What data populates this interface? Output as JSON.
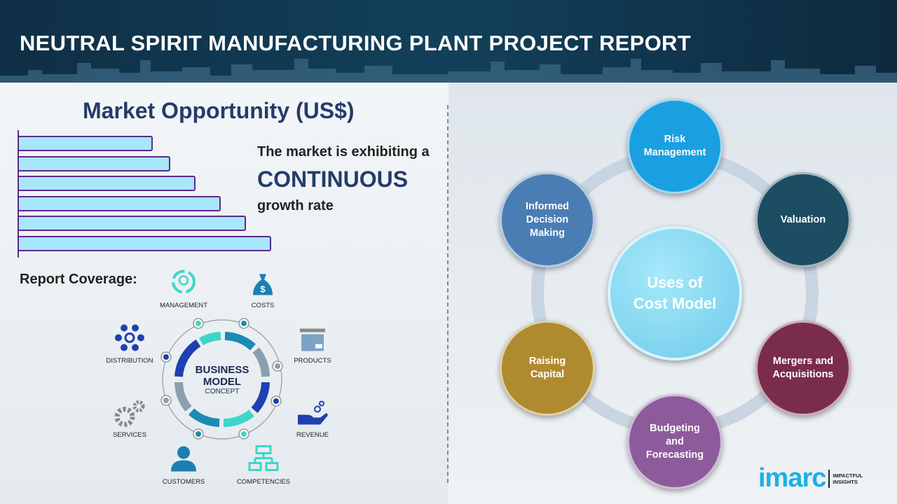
{
  "header": {
    "title": "NEUTRAL SPIRIT MANUFACTURING PLANT PROJECT REPORT"
  },
  "market": {
    "title": "Market Opportunity (US$)",
    "line1": "The market is exhibiting a",
    "line2": "CONTINUOUS",
    "line3": "growth rate",
    "bars_relative": [
      0.53,
      0.6,
      0.7,
      0.8,
      0.9,
      1.0
    ],
    "bar_fill": "#a8e6fb",
    "bar_border": "#5b2a8c"
  },
  "coverage": {
    "title": "Report Coverage:",
    "center_line1": "BUSINESS",
    "center_line2": "MODEL",
    "center_line3": "CONCEPT",
    "items": [
      {
        "label": "MANAGEMENT",
        "icon": "lightbulb-cycle-icon"
      },
      {
        "label": "COSTS",
        "icon": "money-bag-icon"
      },
      {
        "label": "DISTRIBUTION",
        "icon": "network-icon"
      },
      {
        "label": "PRODUCTS",
        "icon": "box-icon"
      },
      {
        "label": "SERVICES",
        "icon": "gears-icon"
      },
      {
        "label": "REVENUE",
        "icon": "hand-coins-icon"
      },
      {
        "label": "CUSTOMERS",
        "icon": "user-icon"
      },
      {
        "label": "COMPETENCIES",
        "icon": "org-chart-icon"
      }
    ]
  },
  "cost_model": {
    "center": [
      "Uses of",
      "Cost Model"
    ],
    "items": [
      {
        "label": "Risk Management",
        "color": "#1a9fe0"
      },
      {
        "label": "Valuation",
        "color": "#1c4d62"
      },
      {
        "label": "Mergers and Acquisitions",
        "color": "#7a2c4d"
      },
      {
        "label": "Budgeting and Forecasting",
        "color": "#8d5b9b"
      },
      {
        "label": "Raising Capital",
        "color": "#b08a2e"
      },
      {
        "label": "Informed Decision Making",
        "color": "#4a7db3"
      }
    ]
  },
  "logo": {
    "brand": "imarc",
    "tag1": "IMPACTFUL",
    "tag2": "INSIGHTS"
  }
}
